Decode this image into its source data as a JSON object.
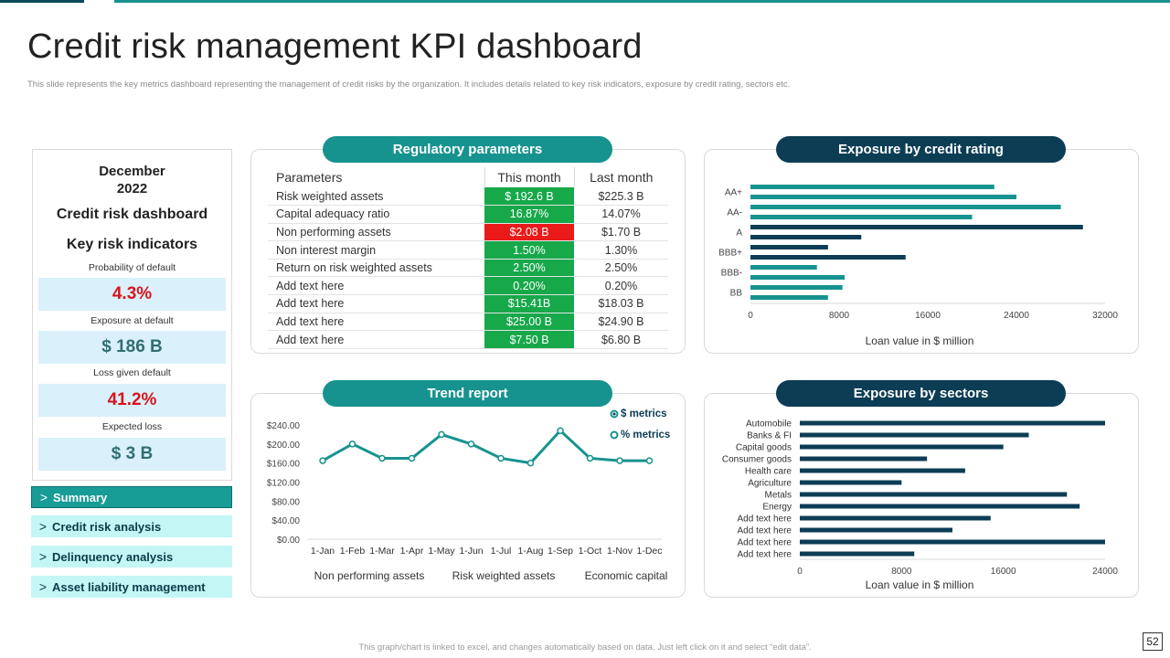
{
  "header": {
    "title": "Credit risk management KPI dashboard",
    "subtitle": "This slide represents the key metrics dashboard representing the management  of credit risks by the organization. It includes details related to key risk indicators, exposure by credit rating, sectors etc."
  },
  "kpi_card": {
    "date_line1": "December",
    "date_line2": "2022",
    "dashboard_title": "Credit risk dashboard",
    "section_title": "Key risk indicators",
    "metrics": [
      {
        "label": "Probability of default",
        "value": "4.3%"
      },
      {
        "label": "Exposure at default",
        "value": "$ 186 B"
      },
      {
        "label": "Loss given default",
        "value": "41.2%"
      },
      {
        "label": "Expected loss",
        "value": "$ 3 B"
      }
    ],
    "colors": {
      "red": "#d9141b",
      "teal": "#2f6f73",
      "box_bg": "#daf0fb"
    }
  },
  "nav": {
    "items": [
      {
        "label": "Summary",
        "active": true
      },
      {
        "label": "Credit risk analysis",
        "active": false
      },
      {
        "label": "Delinquency analysis",
        "active": false
      },
      {
        "label": "Asset  liability management",
        "active": false
      }
    ]
  },
  "regulatory": {
    "title": "Regulatory parameters",
    "headers": [
      "Parameters",
      "This month",
      "Last month"
    ],
    "rows": [
      {
        "param": "Risk weighted assets",
        "this": "$ 192.6 B",
        "last": "$225.3 B",
        "status": "good"
      },
      {
        "param": "Capital adequacy ratio",
        "this": "16.87%",
        "last": "14.07%",
        "status": "good"
      },
      {
        "param": "Non performing  assets",
        "this": "$2.08 B",
        "last": "$1.70 B",
        "status": "bad"
      },
      {
        "param": "Non interest margin",
        "this": "1.50%",
        "last": "1.30%",
        "status": "good"
      },
      {
        "param": "Return on risk weighted assets",
        "this": "2.50%",
        "last": "2.50%",
        "status": "good"
      },
      {
        "param": "Add text here",
        "this": "0.20%",
        "last": "0.20%",
        "status": "good"
      },
      {
        "param": "Add text here",
        "this": "$15.41B",
        "last": "$18.03 B",
        "status": "good"
      },
      {
        "param": "Add text here",
        "this": "$25.00 B",
        "last": "$24.90 B",
        "status": "good"
      },
      {
        "param": "Add text here",
        "this": "$7.50 B",
        "last": "$6.80 B",
        "status": "good"
      }
    ],
    "colors": {
      "good": "#17a84a",
      "bad": "#ea1a1a"
    }
  },
  "footer": {
    "note": "This graph/chart is linked to excel, and changes automatically based on data. Just left click on it and select “edit data”.",
    "page": "52"
  },
  "chart_data": [
    {
      "id": "credit_rating",
      "type": "bar",
      "orientation": "horizontal",
      "title": "Exposure by credit rating",
      "xlabel": "Loan value  in $ million",
      "xlim": [
        0,
        32000
      ],
      "xticks": [
        "0",
        "8000",
        "16000",
        "24000",
        "32000"
      ],
      "tick_labels": [
        "AA+",
        "AA-",
        "A",
        "BBB+",
        "BBB-",
        "BB"
      ],
      "bars": [
        {
          "value": 22000,
          "color": "#17938f"
        },
        {
          "value": 24000,
          "color": "#17938f"
        },
        {
          "value": 28000,
          "color": "#17938f"
        },
        {
          "value": 20000,
          "color": "#17938f"
        },
        {
          "value": 30000,
          "color": "#0c3d55"
        },
        {
          "value": 10000,
          "color": "#0c3d55"
        },
        {
          "value": 7000,
          "color": "#0c3d55"
        },
        {
          "value": 14000,
          "color": "#0c3d55"
        },
        {
          "value": 6000,
          "color": "#17938f"
        },
        {
          "value": 8500,
          "color": "#17938f"
        },
        {
          "value": 8300,
          "color": "#17938f"
        },
        {
          "value": 7000,
          "color": "#17938f"
        }
      ]
    },
    {
      "id": "trend",
      "type": "line",
      "title": "Trend report",
      "categories": [
        "1-Jan",
        "1-Feb",
        "1-Mar",
        "1-Apr",
        "1-May",
        "1-Jun",
        "1-Jul",
        "1-Aug",
        "1-Sep",
        "1-Oct",
        "1-Nov",
        "1-Dec"
      ],
      "series": [
        {
          "name": "$ metrics",
          "values": [
            165,
            200,
            170,
            170,
            220,
            200,
            170,
            160,
            228,
            170,
            165,
            165
          ],
          "color": "#17938f"
        }
      ],
      "legend": [
        "$ metrics",
        "% metrics"
      ],
      "ylim": [
        0,
        240
      ],
      "yticks": [
        "$0.00",
        "$40.00",
        "$80.00",
        "$120.00",
        "$160.00",
        "$200.00",
        "$240.00"
      ],
      "tick_values": [
        0,
        40,
        80,
        120,
        160,
        200,
        240
      ],
      "bottom_labels": [
        "Non performing assets",
        "Risk weighted assets",
        "Economic capital"
      ]
    },
    {
      "id": "sectors",
      "type": "bar",
      "orientation": "horizontal",
      "title": "Exposure by sectors",
      "xlabel": "Loan value  in $ million",
      "xlim": [
        0,
        24000
      ],
      "xticks": [
        "0",
        "8000",
        "16000",
        "24000"
      ],
      "categories": [
        "Automobile",
        "Banks & FI",
        "Capital goods",
        "Consumer goods",
        "Health care",
        "Agriculture",
        "Metals",
        "Energy",
        "Add text here",
        "Add text here",
        "Add text here",
        "Add text here"
      ],
      "values": [
        24000,
        18000,
        16000,
        10000,
        13000,
        8000,
        21000,
        22000,
        15000,
        12000,
        24000,
        9000
      ],
      "color": "#0c3d55"
    }
  ]
}
